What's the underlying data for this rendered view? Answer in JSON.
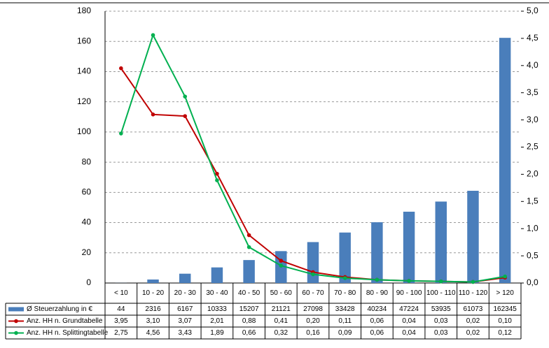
{
  "chart_data": {
    "type": "bar",
    "categories": [
      "< 10",
      "10 - 20",
      "20 - 30",
      "30 - 40",
      "40 - 50",
      "50 - 60",
      "60 - 70",
      "70 - 80",
      "80 - 90",
      "90 - 100",
      "100 - 110",
      "110 - 120",
      "> 120"
    ],
    "series": [
      {
        "name": "Ø Steuerzahlung in €",
        "type": "bar",
        "color": "#4a7ebb",
        "axis": "y",
        "values": [
          0.044,
          2.316,
          6.167,
          10.333,
          15.207,
          21.121,
          27.098,
          33.428,
          40.234,
          47.224,
          53.935,
          61.073,
          162.345
        ],
        "value_labels": [
          "44",
          "2316",
          "6167",
          "10333",
          "15207",
          "21121",
          "27098",
          "33428",
          "40234",
          "47224",
          "53935",
          "61073",
          "162345"
        ]
      },
      {
        "name": "Anz. HH n. Grundtabelle",
        "type": "line",
        "color": "#c00000",
        "axis": "y2",
        "values": [
          3.95,
          3.1,
          3.07,
          2.01,
          0.88,
          0.41,
          0.2,
          0.11,
          0.06,
          0.04,
          0.03,
          0.02,
          0.1
        ],
        "value_labels": [
          "3,95",
          "3,10",
          "3,07",
          "2,01",
          "0,88",
          "0,41",
          "0,20",
          "0,11",
          "0,06",
          "0,04",
          "0,03",
          "0,02",
          "0,10"
        ]
      },
      {
        "name": "Anz. HH n. Splittingtabelle",
        "type": "line",
        "color": "#00b050",
        "axis": "y2",
        "values": [
          2.75,
          4.56,
          3.43,
          1.89,
          0.66,
          0.32,
          0.16,
          0.09,
          0.06,
          0.04,
          0.03,
          0.02,
          0.12
        ],
        "value_labels": [
          "2,75",
          "4,56",
          "3,43",
          "1,89",
          "0,66",
          "0,32",
          "0,16",
          "0,09",
          "0,06",
          "0,04",
          "0,03",
          "0,02",
          "0,12"
        ]
      }
    ],
    "ylim": [
      0,
      180
    ],
    "yticks": [
      0,
      20,
      40,
      60,
      80,
      100,
      120,
      140,
      160,
      180
    ],
    "y2lim": [
      0,
      5
    ],
    "y2ticks": [
      {
        "value": 0,
        "label": "0,0"
      },
      {
        "value": 0.5,
        "label": "0,5"
      },
      {
        "value": 1,
        "label": "1,0"
      },
      {
        "value": 1.5,
        "label": "1,5"
      },
      {
        "value": 2,
        "label": "2,0"
      },
      {
        "value": 2.5,
        "label": "2,5"
      },
      {
        "value": 3,
        "label": "3,0"
      },
      {
        "value": 3.5,
        "label": "3,5"
      },
      {
        "value": 4,
        "label": "4,0"
      },
      {
        "value": 4.5,
        "label": "4,5"
      },
      {
        "value": 5,
        "label": "5,0"
      }
    ],
    "grid": true
  }
}
